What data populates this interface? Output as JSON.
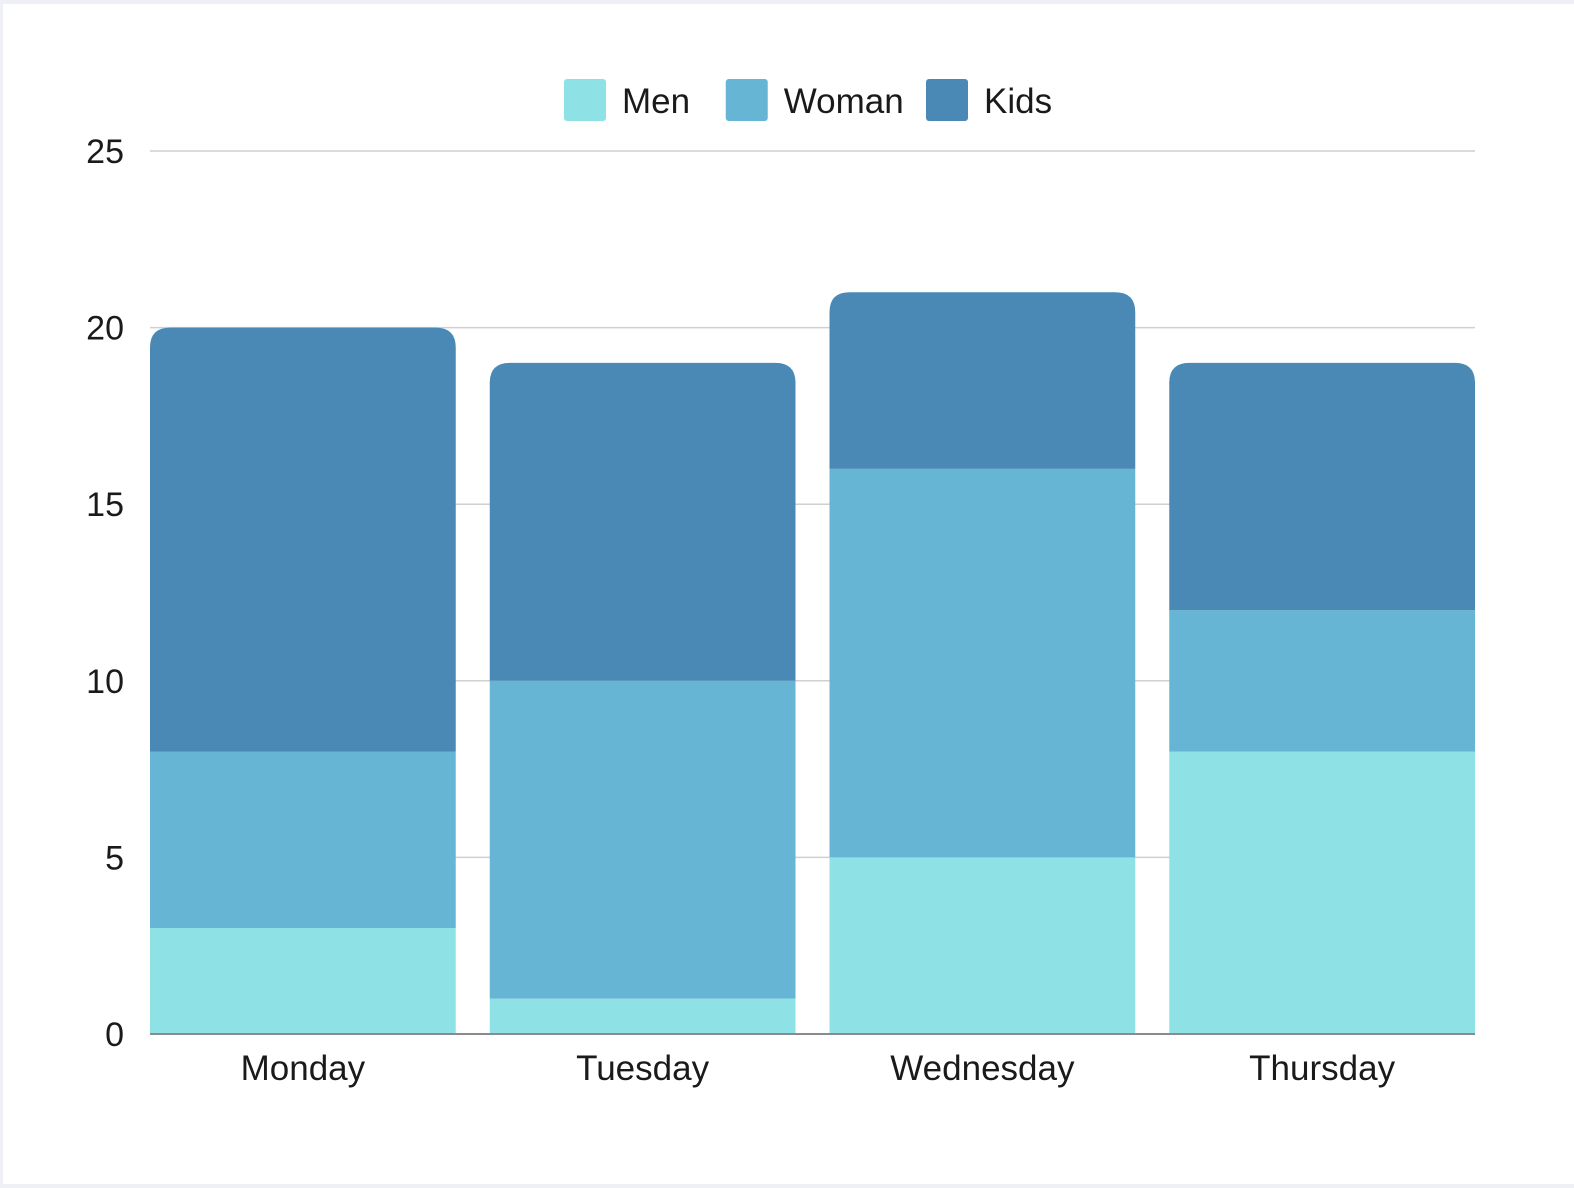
{
  "chart_data": {
    "type": "bar",
    "stacked": true,
    "categories": [
      "Monday",
      "Tuesday",
      "Wednesday",
      "Thursday"
    ],
    "series": [
      {
        "name": "Men",
        "color": "#8ee2e6",
        "values": [
          3,
          1,
          5,
          8
        ]
      },
      {
        "name": "Woman",
        "color": "#66b5d4",
        "values": [
          5,
          9,
          11,
          4
        ]
      },
      {
        "name": "Kids",
        "color": "#4a89b6",
        "values": [
          12,
          9,
          5,
          7
        ]
      }
    ],
    "ylim": [
      0,
      25
    ],
    "yticks": [
      0,
      5,
      10,
      15,
      20,
      25
    ],
    "grid": true,
    "legend": "top-center"
  }
}
